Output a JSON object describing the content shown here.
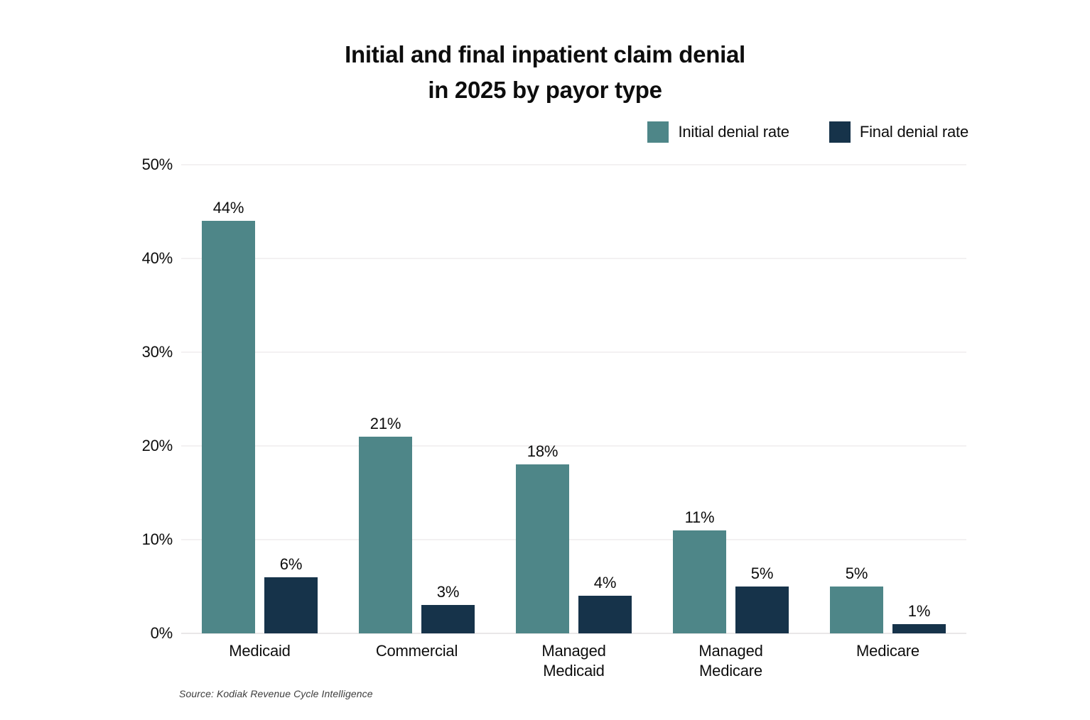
{
  "header": {
    "title_lines": [
      "Initial and final inpatient claim denial",
      "in 2025 by payor type"
    ]
  },
  "chart_data": {
    "type": "bar",
    "title": "Initial and final inpatient claim denial in 2025 by payor type",
    "categories": [
      "Medicaid",
      "Commercial",
      "Managed Medicaid",
      "Managed Medicare",
      "Medicare"
    ],
    "series": [
      {
        "name": "Initial denial rate",
        "color": "#4e8688",
        "values": [
          44,
          21,
          18,
          11,
          5
        ]
      },
      {
        "name": "Final denial rate",
        "color": "#16334a",
        "values": [
          6,
          3,
          4,
          5,
          1
        ]
      }
    ],
    "value_suffix": "%",
    "value_labels": true,
    "ylim": [
      0,
      50
    ],
    "yticks": [
      0,
      10,
      20,
      30,
      40,
      50
    ],
    "ytick_suffix": "%",
    "grid": "horizontal",
    "legend_position": "top-right",
    "xlabel": "",
    "ylabel": ""
  },
  "footer": {
    "source": "Source: Kodiak Revenue Cycle Intelligence"
  },
  "colors": {
    "background": "#ffffff",
    "gridline": "#f3f1f2",
    "baseline": "#e9e7e8",
    "text": "#0d0d0d",
    "initial_bar": "#4e8688",
    "final_bar": "#16334a"
  }
}
